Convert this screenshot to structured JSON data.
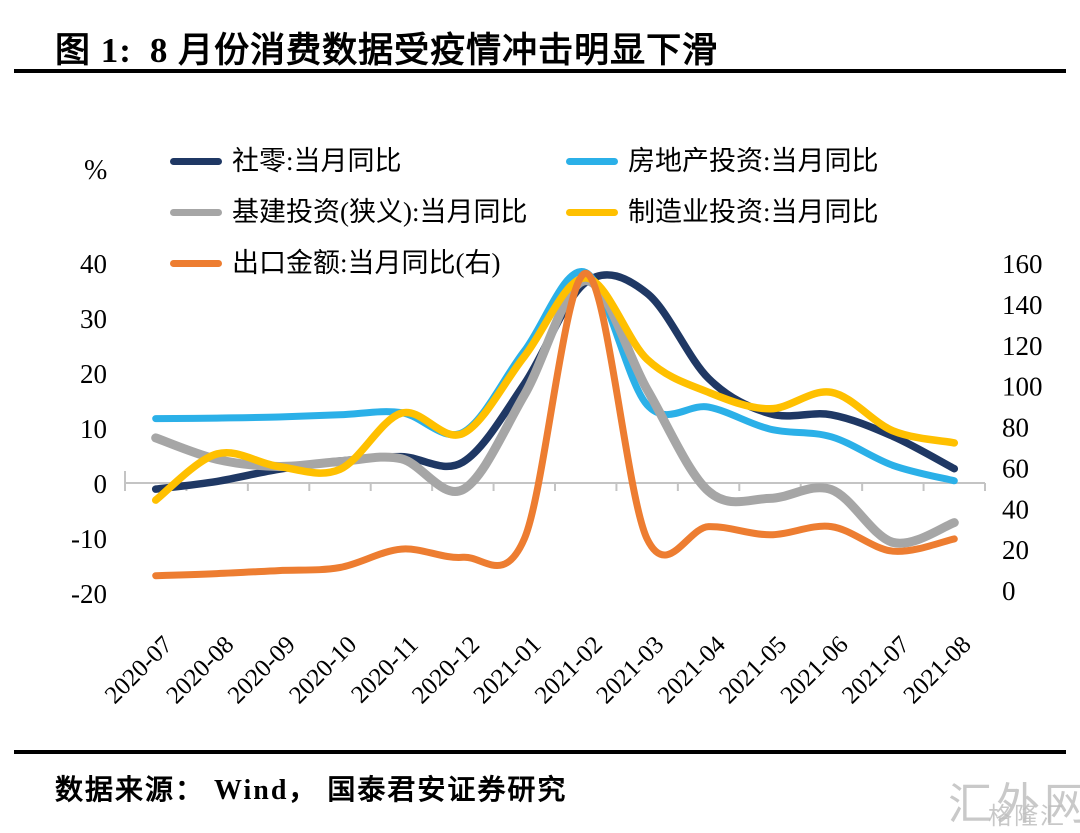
{
  "header": {
    "figure_label": "图 1:",
    "title": "8 月份消费数据受疫情冲击明显下滑"
  },
  "footer": {
    "source": "数据来源： Wind， 国泰君安证券研究"
  },
  "watermark": {
    "primary": "汇外网",
    "secondary": "格隆汇"
  },
  "chart_data": {
    "type": "line",
    "title": "8 月份消费数据受疫情冲击明显下滑",
    "grid": "none",
    "legend_position": "top",
    "left_axis": {
      "unit": "%",
      "min": -20,
      "max": 40,
      "ticks": [
        40,
        30,
        20,
        10,
        0,
        -10,
        -20
      ]
    },
    "right_axis": {
      "min": 0,
      "max": 160,
      "ticks": [
        160,
        140,
        120,
        100,
        80,
        60,
        40,
        20,
        0
      ]
    },
    "categories": [
      "2020-07",
      "2020-08",
      "2020-09",
      "2020-10",
      "2020-11",
      "2020-12",
      "2021-01",
      "2021-02",
      "2021-03",
      "2021-04",
      "2021-05",
      "2021-06",
      "2021-07",
      "2021-08"
    ],
    "series": [
      {
        "key": "retail-sales",
        "name": "社零:当月同比",
        "axis": "left",
        "color": "#1F3864",
        "width": 7.5,
        "values": [
          -1.1,
          0.3,
          2.5,
          4.0,
          4.8,
          3.8,
          18.0,
          36.5,
          34.5,
          19.0,
          12.6,
          12.4,
          8.5,
          2.6
        ]
      },
      {
        "key": "real-estate-investment",
        "name": "房地产投资:当月同比",
        "axis": "left",
        "color": "#2BB0E8",
        "width": 7,
        "values": [
          11.7,
          11.8,
          12.0,
          12.4,
          12.8,
          9.2,
          24.0,
          38.3,
          14.2,
          13.8,
          9.8,
          8.4,
          3.2,
          0.4
        ]
      },
      {
        "key": "infrastructure-investment",
        "name": "基建投资(狭义):当月同比",
        "axis": "left",
        "color": "#A6A6A6",
        "width": 9,
        "values": [
          8.2,
          4.3,
          3.0,
          3.9,
          4.4,
          -1.2,
          16.0,
          36.8,
          17.0,
          -1.5,
          -2.8,
          -1.2,
          -10.8,
          -7.2
        ]
      },
      {
        "key": "manufacturing-investment",
        "name": "制造业投资:当月同比",
        "axis": "left",
        "color": "#FFC000",
        "width": 7.5,
        "values": [
          -3.1,
          5.3,
          3.0,
          2.5,
          12.7,
          9.0,
          23.0,
          37.3,
          22.5,
          16.5,
          13.5,
          16.5,
          9.5,
          7.3
        ]
      },
      {
        "key": "export-value",
        "name": "出口金额:当月同比(右)",
        "axis": "right",
        "color": "#ED7D31",
        "width": 7,
        "values": [
          7,
          8,
          9.5,
          11,
          20,
          16,
          25,
          155,
          25,
          31,
          27,
          31,
          19,
          25
        ]
      }
    ]
  }
}
